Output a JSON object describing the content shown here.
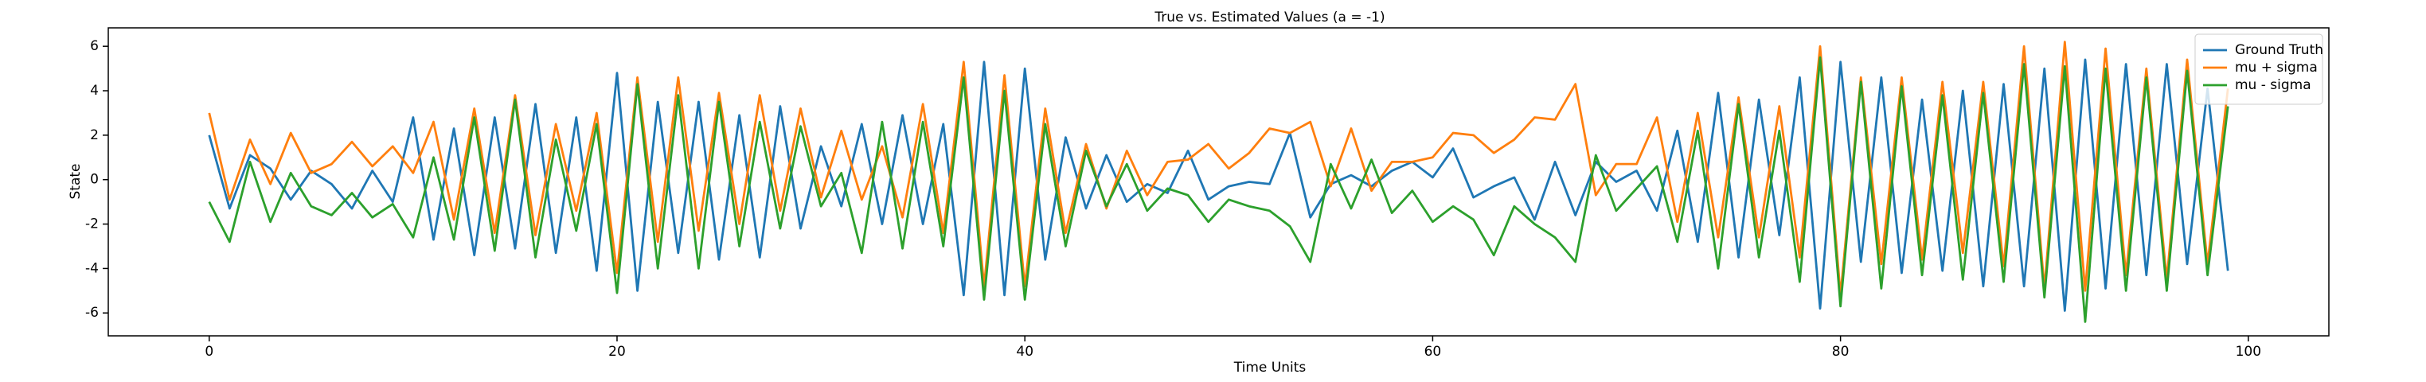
{
  "chart_data": {
    "type": "line",
    "title": "True vs. Estimated Values (a = -1)",
    "x_label": "Time Units",
    "y_label": "State",
    "x": [
      0,
      1,
      2,
      3,
      4,
      5,
      6,
      7,
      8,
      9,
      10,
      11,
      12,
      13,
      14,
      15,
      16,
      17,
      18,
      19,
      20,
      21,
      22,
      23,
      24,
      25,
      26,
      27,
      28,
      29,
      30,
      31,
      32,
      33,
      34,
      35,
      36,
      37,
      38,
      39,
      40,
      41,
      42,
      43,
      44,
      45,
      46,
      47,
      48,
      49,
      50,
      51,
      52,
      53,
      54,
      55,
      56,
      57,
      58,
      59,
      60,
      61,
      62,
      63,
      64,
      65,
      66,
      67,
      68,
      69,
      70,
      71,
      72,
      73,
      74,
      75,
      76,
      77,
      78,
      79,
      80,
      81,
      82,
      83,
      84,
      85,
      86,
      87,
      88,
      89,
      90,
      91,
      92,
      93,
      94,
      95,
      96,
      97,
      98,
      99
    ],
    "series": [
      {
        "name": "Ground Truth",
        "color": "#1f77b4",
        "values": [
          2.0,
          -1.3,
          1.1,
          0.5,
          -0.9,
          0.4,
          -0.2,
          -1.3,
          0.4,
          -1.0,
          2.8,
          -2.7,
          2.3,
          -3.4,
          2.8,
          -3.1,
          3.4,
          -3.3,
          2.8,
          -4.1,
          4.8,
          -5.0,
          3.5,
          -3.3,
          3.5,
          -3.6,
          2.9,
          -3.5,
          3.3,
          -2.2,
          1.5,
          -1.2,
          2.5,
          -2.0,
          2.9,
          -2.0,
          2.5,
          -5.2,
          5.3,
          -5.2,
          5.0,
          -3.6,
          1.9,
          -1.3,
          1.1,
          -1.0,
          -0.2,
          -0.6,
          1.3,
          -0.9,
          -0.3,
          -0.1,
          -0.2,
          2.1,
          -1.7,
          -0.2,
          0.2,
          -0.3,
          0.4,
          0.8,
          0.1,
          1.4,
          -0.8,
          -0.3,
          0.1,
          -1.8,
          0.8,
          -1.6,
          0.8,
          -0.1,
          0.4,
          -1.4,
          2.2,
          -2.8,
          3.9,
          -3.5,
          3.6,
          -2.5,
          4.6,
          -5.8,
          5.3,
          -3.7,
          4.6,
          -4.2,
          3.6,
          -4.1,
          4.0,
          -4.8,
          4.3,
          -4.8,
          5.0,
          -5.9,
          5.4,
          -4.9,
          5.2,
          -4.3,
          5.2,
          -3.8,
          4.1,
          -4.1
        ]
      },
      {
        "name": "mu + sigma",
        "color": "#ff7f0e",
        "values": [
          3.0,
          -0.9,
          1.8,
          -0.2,
          2.1,
          0.3,
          0.7,
          1.7,
          0.6,
          1.5,
          0.3,
          2.6,
          -1.8,
          3.2,
          -2.4,
          3.8,
          -2.5,
          2.5,
          -1.4,
          3.0,
          -4.2,
          4.6,
          -2.8,
          4.6,
          -2.3,
          3.9,
          -2.0,
          3.8,
          -1.4,
          3.2,
          -0.8,
          2.2,
          -0.9,
          1.5,
          -1.7,
          3.4,
          -2.4,
          5.3,
          -4.8,
          4.7,
          -4.8,
          3.2,
          -2.4,
          1.6,
          -1.3,
          1.3,
          -0.7,
          0.8,
          0.9,
          1.6,
          0.5,
          1.2,
          2.3,
          2.1,
          2.6,
          -0.3,
          2.3,
          -0.5,
          0.8,
          0.8,
          1.0,
          2.1,
          2.0,
          1.2,
          1.8,
          2.8,
          2.7,
          4.3,
          -0.7,
          0.7,
          0.7,
          2.8,
          -1.9,
          3.0,
          -2.6,
          3.7,
          -2.6,
          3.3,
          -3.5,
          6.0,
          -5.2,
          4.6,
          -3.8,
          4.6,
          -3.6,
          4.4,
          -3.3,
          4.4,
          -3.9,
          6.0,
          -4.9,
          6.2,
          -5.0,
          5.9,
          -4.3,
          5.0,
          -4.5,
          5.4,
          -3.8,
          4.1
        ]
      },
      {
        "name": "mu - sigma",
        "color": "#2ca02c",
        "values": [
          -1.0,
          -2.8,
          0.8,
          -1.9,
          0.3,
          -1.2,
          -1.6,
          -0.6,
          -1.7,
          -1.1,
          -2.6,
          1.0,
          -2.7,
          2.8,
          -3.2,
          3.6,
          -3.5,
          1.8,
          -2.3,
          2.5,
          -5.1,
          4.3,
          -4.0,
          3.8,
          -4.0,
          3.5,
          -3.0,
          2.6,
          -2.2,
          2.4,
          -1.2,
          0.3,
          -3.3,
          2.6,
          -3.1,
          2.6,
          -3.0,
          4.6,
          -5.4,
          4.0,
          -5.4,
          2.5,
          -3.0,
          1.3,
          -1.2,
          0.7,
          -1.4,
          -0.4,
          -0.7,
          -1.9,
          -0.9,
          -1.2,
          -1.4,
          -2.1,
          -3.7,
          0.7,
          -1.3,
          0.9,
          -1.5,
          -0.5,
          -1.9,
          -1.2,
          -1.8,
          -3.4,
          -1.2,
          -2.0,
          -2.6,
          -3.7,
          1.1,
          -1.4,
          -0.4,
          0.6,
          -2.8,
          2.2,
          -4.0,
          3.4,
          -3.5,
          2.2,
          -4.6,
          5.5,
          -5.7,
          4.4,
          -4.9,
          4.2,
          -4.3,
          3.8,
          -4.5,
          3.9,
          -4.6,
          5.2,
          -5.3,
          5.1,
          -6.4,
          5.0,
          -5.0,
          4.6,
          -5.0,
          4.9,
          -4.3,
          3.3
        ]
      }
    ],
    "xlim": [
      -4.95,
      103.95
    ],
    "xticks": [
      0,
      20,
      40,
      60,
      80,
      100
    ],
    "ylim": [
      -7.03,
      6.83
    ],
    "yticks": [
      -6,
      -4,
      -2,
      0,
      2,
      4,
      6
    ],
    "legend": "upper right"
  }
}
